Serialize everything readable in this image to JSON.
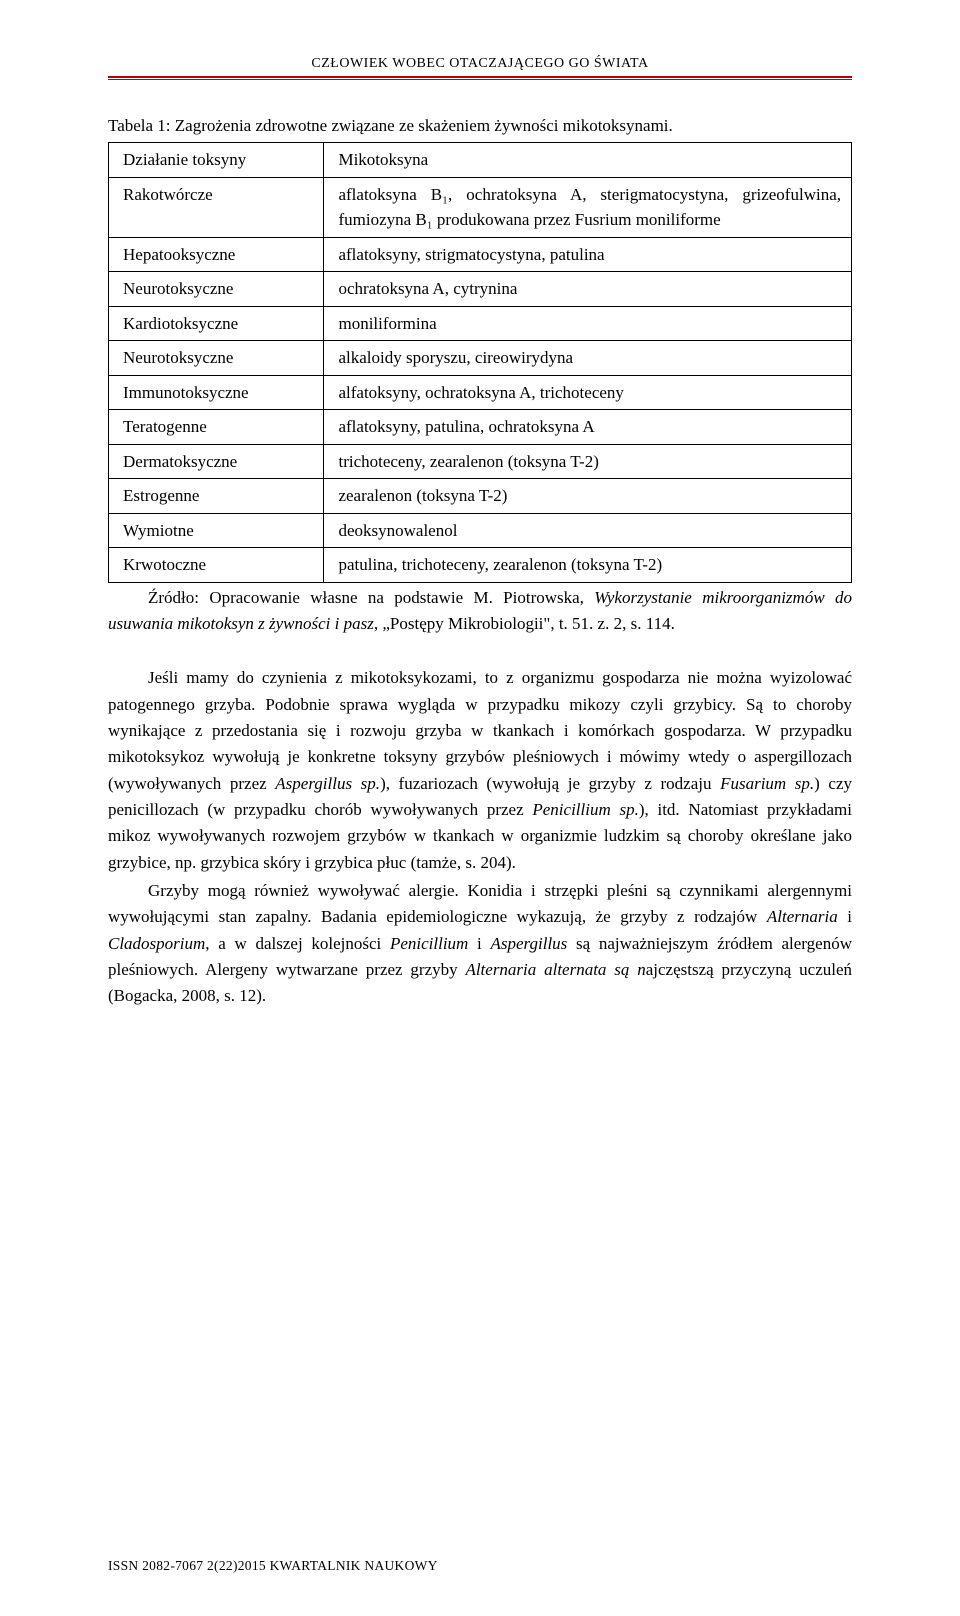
{
  "running_head": "CZŁOWIEK WOBEC OTACZAJĄCEGO GO ŚWIATA",
  "rule_color": "#c00000",
  "table": {
    "caption": "Tabela 1: Zagrożenia zdrowotne związane ze skażeniem żywności mikotoksynami.",
    "rows": [
      {
        "left": "Działanie toksyny",
        "right": "Mikotoksyna"
      },
      {
        "left": "Rakotwórcze",
        "right": "aflatoksyna B₁, ochratoksyna A, sterigmatocystyna, grizeofulwina, fumiozyna B₁ produkowana przez Fusrium moniliforme",
        "right_italic_tail": "Fusrium moniliforme"
      },
      {
        "left": "Hepatooksyczne",
        "right": "aflatoksyny, strigmatocystyna, patulina"
      },
      {
        "left": "Neurotoksyczne",
        "right": "ochratoksyna A, cytrynina"
      },
      {
        "left": "Kardiotoksyczne",
        "right": "moniliformina"
      },
      {
        "left": "Neurotoksyczne",
        "right": "alkaloidy sporyszu, cireowirydyna"
      },
      {
        "left": "Immunotoksyczne",
        "right": "alfatoksyny, ochratoksyna A, trichoteceny"
      },
      {
        "left": "Teratogenne",
        "right": "aflatoksyny, patulina, ochratoksyna A"
      },
      {
        "left": "Dermatoksyczne",
        "right": "trichoteceny, zearalenon (toksyna T-2)"
      },
      {
        "left": "Estrogenne",
        "right": "zearalenon (toksyna T-2)"
      },
      {
        "left": "Wymiotne",
        "right": "deoksynowalenol"
      },
      {
        "left": "Krwotoczne",
        "right": "patulina, trichoteceny, zearalenon (toksyna T-2)"
      }
    ]
  },
  "source": {
    "prefix": "Źródło: Opracowanie własne na podstawie M. Piotrowska, ",
    "italic": "Wykorzystanie mikroorganizmów do usuwania mikotoksyn z żywności i pasz",
    "suffix": ", „Postępy Mikrobiologii\", t. 51. z. 2, s. 114."
  },
  "paragraphs": [
    {
      "segments": [
        {
          "t": "Jeśli mamy do czynienia z mikotoksykozami, to z organizmu gospodarza nie można wyizolować patogennego grzyba. Podobnie sprawa wygląda w przypadku mikozy czyli grzybicy. Są to choroby wynikające z przedostania się i rozwoju grzyba w tkankach i komórkach gospodarza. W przypadku mikotoksykoz wywołują je konkretne toksyny grzybów pleśniowych i mówimy wtedy o aspergillozach (wywoływanych przez "
        },
        {
          "t": "Aspergillus sp.",
          "i": true
        },
        {
          "t": "), fuzariozach (wywołują je grzyby z rodzaju "
        },
        {
          "t": "Fusarium sp.",
          "i": true
        },
        {
          "t": ") czy penicillozach (w przypadku chorób wywoływanych przez "
        },
        {
          "t": "Penicillium sp.",
          "i": true
        },
        {
          "t": "), itd. Natomiast przykładami mikoz wywoływanych rozwojem grzybów w tkankach w organizmie ludzkim są choroby określane jako grzybice, np. grzybica skóry i grzybica płuc (tamże, s. 204)."
        }
      ]
    },
    {
      "segments": [
        {
          "t": "Grzyby mogą również wywoływać alergie. Konidia i strzępki pleśni są czynnikami alergennymi wywołującymi stan zapalny. Badania epidemiologiczne wykazują, że grzyby z rodzajów "
        },
        {
          "t": "Alternaria",
          "i": true
        },
        {
          "t": " i "
        },
        {
          "t": "Cladosporium",
          "i": true
        },
        {
          "t": ", a w dalszej kolejności "
        },
        {
          "t": "Penicillium",
          "i": true
        },
        {
          "t": " i "
        },
        {
          "t": "Aspergillus",
          "i": true
        },
        {
          "t": " są najważniejszym źródłem alergenów pleśniowych. Alergeny wytwarzane przez grzyby "
        },
        {
          "t": "Alternaria alternata są n",
          "i": true
        },
        {
          "t": "ajczęstszą przyczyną uczuleń (Bogacka, 2008, s. 12)."
        }
      ]
    }
  ],
  "footer": "ISSN 2082-7067  2(22)2015 KWARTALNIK NAUKOWY"
}
